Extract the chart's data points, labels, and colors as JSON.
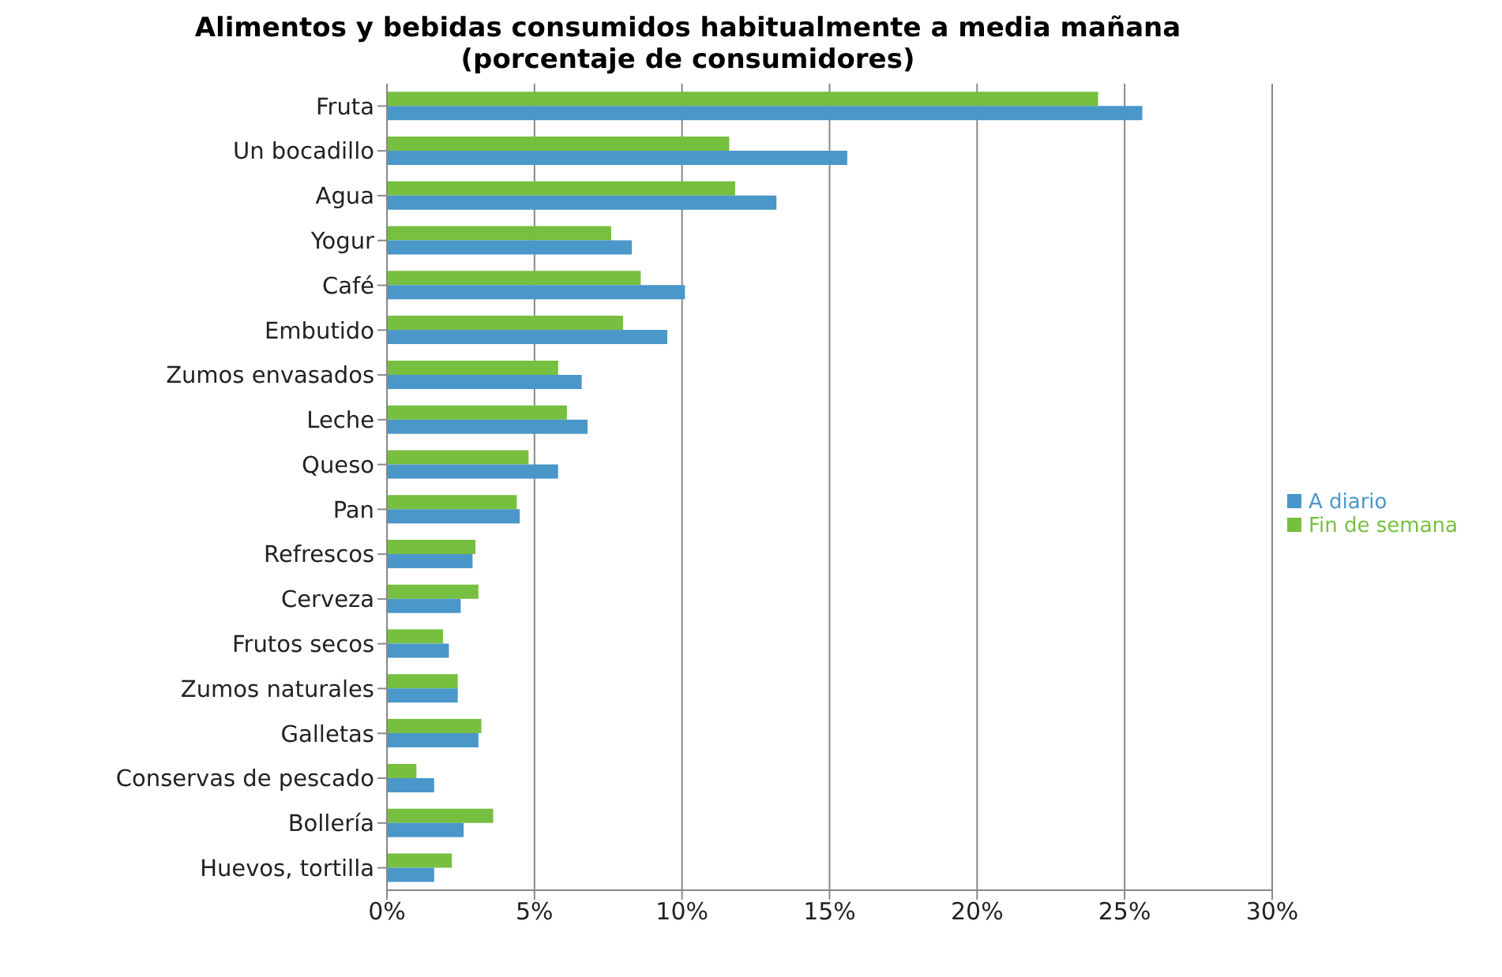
{
  "chart_data": {
    "type": "bar",
    "orientation": "horizontal",
    "title": "Alimentos y bebidas consumidos habitualmente a media mañana",
    "subtitle": "(porcentaje de consumidores)",
    "categories": [
      "Fruta",
      "Un bocadillo",
      "Agua",
      "Yogur",
      "Café",
      "Embutido",
      "Zumos envasados",
      "Leche",
      "Queso",
      "Pan",
      "Refrescos",
      "Cerveza",
      "Frutos secos",
      "Zumos naturales",
      "Galletas",
      "Conservas de pescado",
      "Bollería",
      "Huevos, tortilla"
    ],
    "series": [
      {
        "name": "Fin de semana",
        "color": "#77bf3f",
        "values": [
          24.1,
          11.6,
          11.8,
          7.6,
          8.6,
          8.0,
          5.8,
          6.1,
          4.8,
          4.4,
          3.0,
          3.1,
          1.9,
          2.4,
          3.2,
          1.0,
          3.6,
          2.2
        ]
      },
      {
        "name": "A diario",
        "color": "#4a97c9",
        "values": [
          25.6,
          15.6,
          13.2,
          8.3,
          10.1,
          9.5,
          6.6,
          6.8,
          5.8,
          4.5,
          2.9,
          2.5,
          2.1,
          2.4,
          3.1,
          1.6,
          2.6,
          1.6
        ]
      }
    ],
    "xlim": [
      0,
      30
    ],
    "xticks": [
      {
        "value": 0,
        "label": "0%"
      },
      {
        "value": 5,
        "label": "5%"
      },
      {
        "value": 10,
        "label": "10%"
      },
      {
        "value": 15,
        "label": "15%"
      },
      {
        "value": 20,
        "label": "20%"
      },
      {
        "value": 25,
        "label": "25%"
      },
      {
        "value": 30,
        "label": "30%"
      }
    ],
    "grid": "x",
    "legend": "right"
  }
}
